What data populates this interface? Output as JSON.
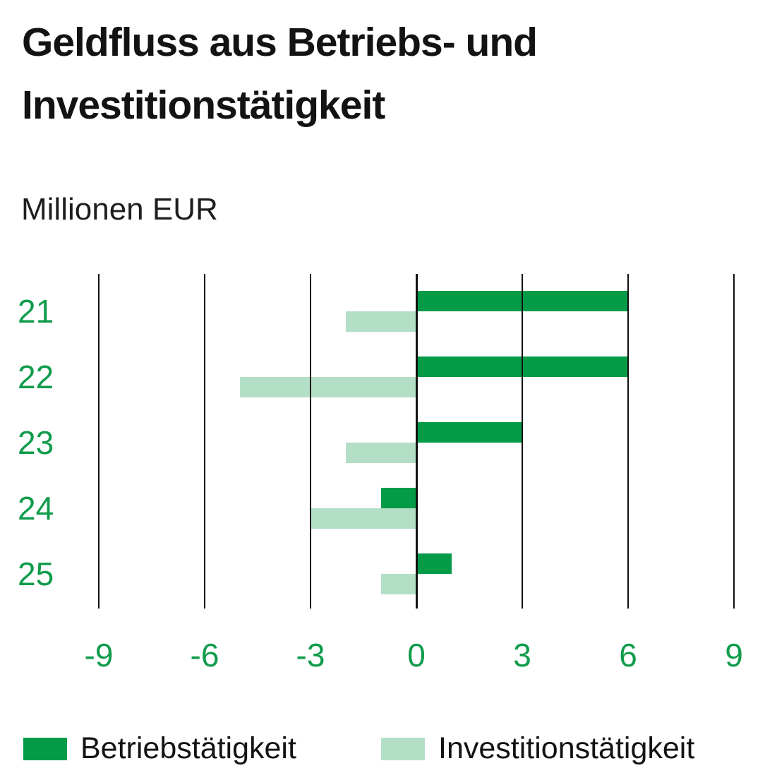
{
  "title": "Geldfluss aus Betriebs- und Investitionstätigkeit",
  "title_lines": [
    "Geldfluss aus Betriebs- und",
    "Investitionstätigkeit"
  ],
  "subtitle": "Millionen EUR",
  "colors": {
    "operating_green": "#049b48",
    "investing_green": "#b3dfc6",
    "axis_label_green": "#109c4b",
    "text_black": "#131313",
    "gridline_black": "#111111"
  },
  "chart_data": {
    "type": "bar",
    "orientation": "horizontal",
    "title": "Geldfluss aus Betriebs- und Investitionstätigkeit",
    "subtitle": "Millionen EUR",
    "xlabel": "",
    "ylabel": "Millionen EUR",
    "categories": [
      "21",
      "22",
      "23",
      "24",
      "25"
    ],
    "series": [
      {
        "name": "Betriebstätigkeit",
        "color": "#049b48",
        "values": [
          6,
          6,
          3,
          -1,
          1
        ]
      },
      {
        "name": "Investitionstätigkeit",
        "color": "#b3dfc6",
        "values": [
          -2,
          -5,
          -2,
          -3,
          -1
        ]
      }
    ],
    "xlim": [
      -9,
      9
    ],
    "xticks": [
      -9,
      -6,
      -3,
      0,
      3,
      6,
      9
    ],
    "grid": "vertical",
    "legend_position": "bottom"
  },
  "legend": {
    "items": [
      {
        "label": "Betriebstätigkeit"
      },
      {
        "label": "Investitionstätigkeit"
      }
    ]
  }
}
